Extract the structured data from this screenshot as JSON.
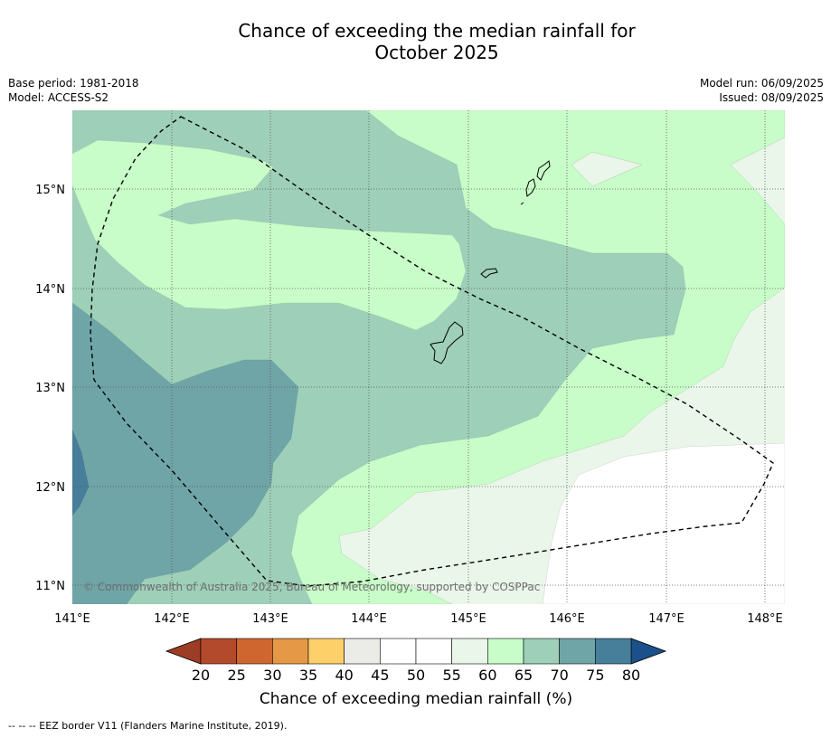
{
  "title": {
    "line1": "Chance of exceeding the median rainfall for",
    "line2": "October 2025"
  },
  "meta": {
    "base_period": "Base period: 1981-2018",
    "model": "Model: ACCESS-S2",
    "model_run": "Model run: 06/09/2025",
    "issued": "Issued: 08/09/2025"
  },
  "map": {
    "copyright": "© Commonwealth of Australia 2025, Bureau of Meteorology, supported by COSPPac",
    "lon_labels": [
      "141°E",
      "142°E",
      "143°E",
      "144°E",
      "145°E",
      "146°E",
      "147°E",
      "148°E"
    ],
    "lat_labels": [
      "15°N",
      "14°N",
      "13°N",
      "12°N",
      "11°N"
    ],
    "border_style": "dashed"
  },
  "colorbar": {
    "title": "Chance of exceeding median rainfall (%)",
    "ticks": [
      "20",
      "25",
      "30",
      "35",
      "40",
      "45",
      "50",
      "55",
      "60",
      "65",
      "70",
      "75",
      "80"
    ],
    "colors": [
      "#b34a2b",
      "#cf6630",
      "#e59845",
      "#fdd069",
      "#ebebe8",
      "#ffffff",
      "#ffffff",
      "#eaf6ea",
      "#c8fcc8",
      "#9ecfb8",
      "#6fa5a6",
      "#477e9a"
    ],
    "low_extend": "#9e3d25",
    "high_extend": "#1b508a"
  },
  "footnote": "--  --  -- EEZ border V11 (Flanders Marine Institute, 2019)."
}
